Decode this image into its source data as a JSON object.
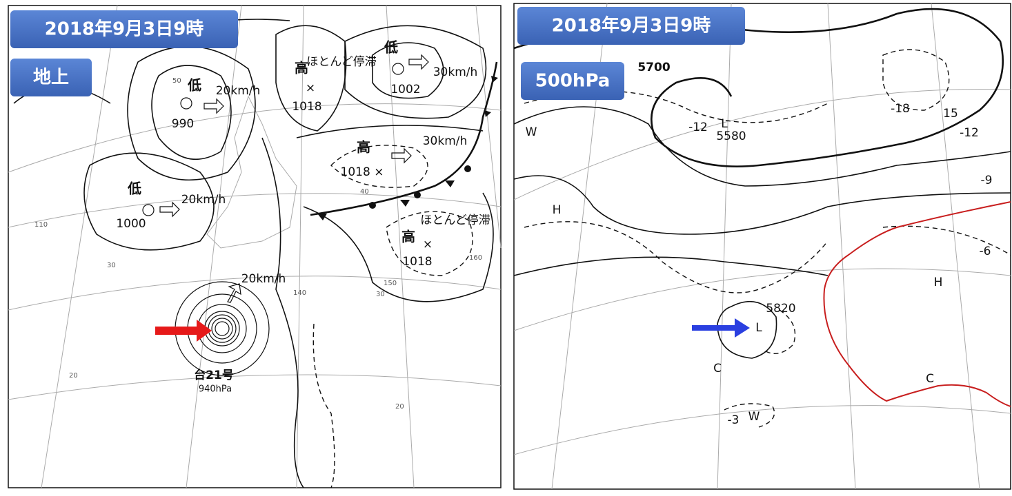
{
  "left_panel": {
    "date": "2018年9月3日9時",
    "level": "地上",
    "lows": [
      {
        "symbol": "低",
        "pressure": "990",
        "speed": "20km/h"
      },
      {
        "symbol": "低",
        "pressure": "1000",
        "speed": "20km/h"
      },
      {
        "symbol": "低",
        "pressure": "1002",
        "speed": "30km/h"
      }
    ],
    "highs": [
      {
        "symbol": "高",
        "pressure": "1018",
        "note": "ほとんど停滞"
      },
      {
        "symbol": "高",
        "pressure": "1018 ×",
        "speed": "30km/h"
      },
      {
        "symbol": "高",
        "pressure": "1018",
        "note": "ほとんど停滞"
      }
    ],
    "typhoon": {
      "name": "台21号",
      "pressure": "940hPa",
      "speed": "20km/h"
    },
    "grid_labels": [
      "50",
      "40",
      "30",
      "20",
      "110",
      "140",
      "150",
      "160",
      "30",
      "20"
    ]
  },
  "right_panel": {
    "date": "2018年9月3日9時",
    "level": "500hPa",
    "height_labels": [
      "5700",
      "5580",
      "5820"
    ],
    "centers": [
      "H",
      "H",
      "L",
      "L",
      "C",
      "C",
      "W",
      "W"
    ],
    "temperature_labels": [
      "-12",
      "-18",
      "15",
      "-12",
      "-9",
      "-6",
      "-3"
    ]
  }
}
